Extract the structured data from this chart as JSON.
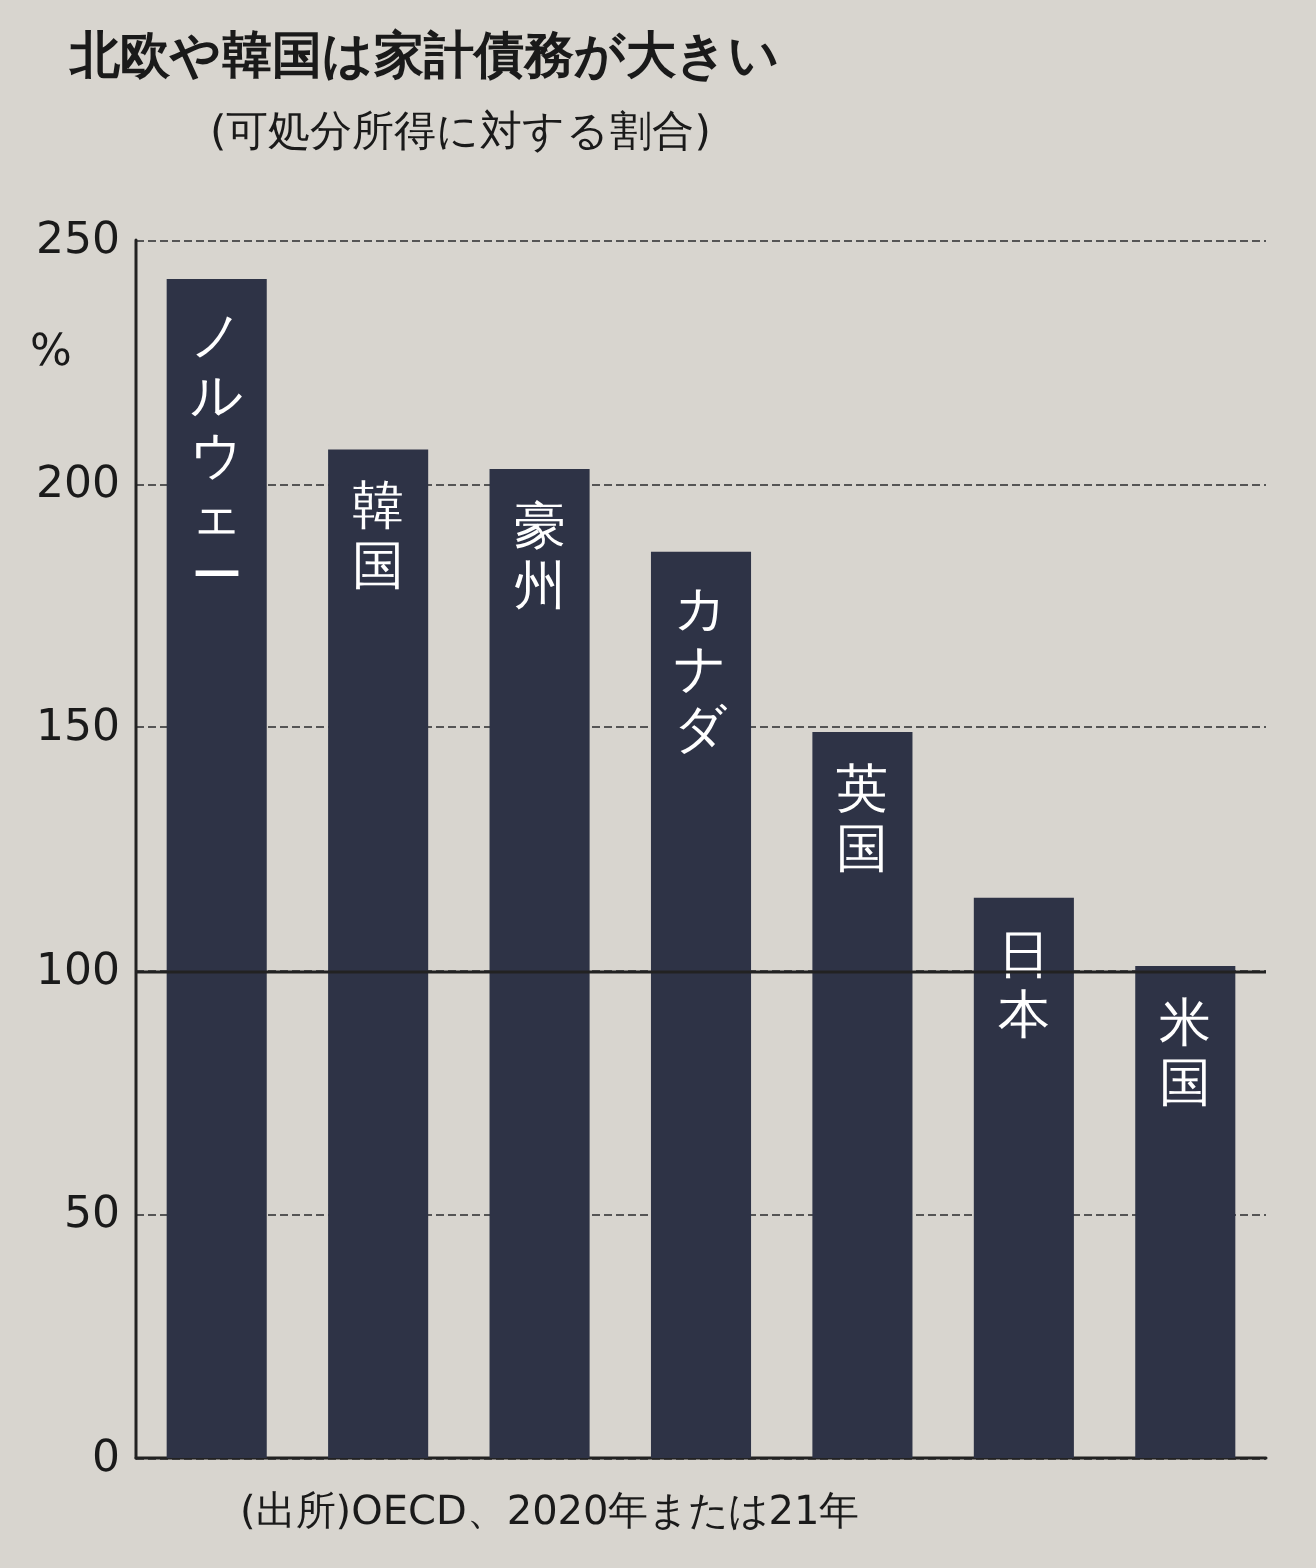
{
  "chart_data": {
    "type": "bar",
    "title": "北欧や韓国は家計債務が大きい",
    "subtitle": "(可処分所得に対する割合)",
    "ylabel": "%",
    "categories": [
      "ノルウェー",
      "韓国",
      "豪州",
      "カナダ",
      "英国",
      "日本",
      "米国"
    ],
    "values": [
      242,
      207,
      203,
      186,
      149,
      115,
      101
    ],
    "color": "#2e3346",
    "ylim": [
      0,
      250
    ],
    "yticks": [
      0,
      50,
      100,
      150,
      200,
      250
    ],
    "grid": "y",
    "tick_labels": "y",
    "ref_lines": [
      {
        "axis": "y",
        "value": 100,
        "line_style": "solid"
      }
    ],
    "annotations": [
      "(出所)OECD、2020年または21年"
    ]
  }
}
